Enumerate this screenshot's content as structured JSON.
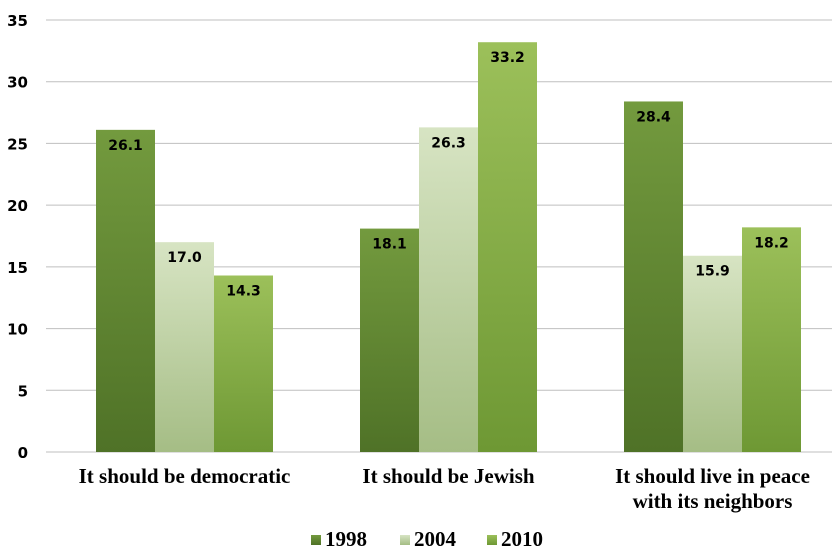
{
  "chart_data": {
    "type": "bar",
    "categories": [
      [
        "It should be democratic"
      ],
      [
        "It should be Jewish"
      ],
      [
        "It should live in peace",
        "with its neighbors"
      ]
    ],
    "series": [
      {
        "name": "1998",
        "values": [
          26.1,
          18.1,
          28.4
        ],
        "labels": [
          "26.1",
          "18.1",
          "28.4"
        ],
        "color_top": "#739a3e",
        "color_bottom": "#4f7227"
      },
      {
        "name": "2004",
        "values": [
          17.0,
          26.3,
          15.9
        ],
        "labels": [
          "17.0",
          "26.3",
          "15.9"
        ],
        "color_top": "#d7e4c3",
        "color_bottom": "#a5bd85"
      },
      {
        "name": "2010",
        "values": [
          14.3,
          33.2,
          18.2
        ],
        "labels": [
          "14.3",
          "33.2",
          "18.2"
        ],
        "color_top": "#9cc05a",
        "color_bottom": "#6e9834"
      }
    ],
    "yticks": [
      "0",
      "5",
      "10",
      "15",
      "20",
      "25",
      "30",
      "35"
    ],
    "ylim": [
      0,
      35
    ],
    "grid": true,
    "legend_position": "bottom"
  }
}
